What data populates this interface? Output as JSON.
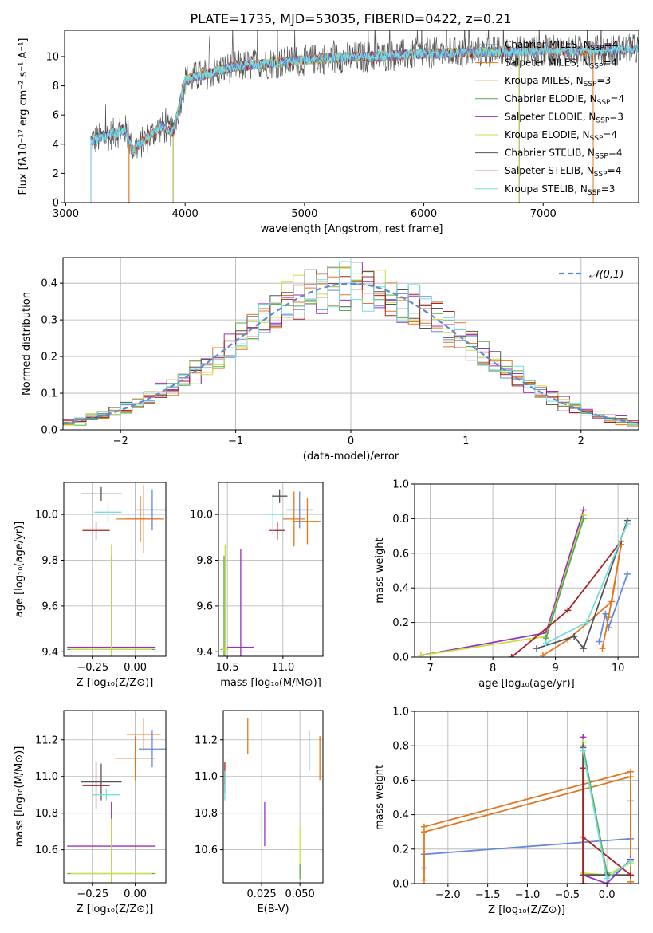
{
  "figure_title": "PLATE=1735, MJD=53035, FIBERID=0422, z=0.21",
  "colors": [
    "#6688dd",
    "#e07820",
    "#e07820",
    "#55aa55",
    "#9933bb",
    "#ccdd44",
    "#555555",
    "#aa2222",
    "#77dddd"
  ],
  "chart_data": [
    {
      "id": "spectrum",
      "type": "line",
      "title": "PLATE=1735, MJD=53035, FIBERID=0422, z=0.21",
      "xlabel": "wavelength [Angstrom, rest frame]",
      "ylabel": "Flux [fλ10⁻¹⁷ erg cm⁻² s⁻¹ A⁻¹]",
      "xlim": [
        2990,
        7800
      ],
      "ylim": [
        0,
        11.8
      ],
      "xticks": [
        3000,
        4000,
        5000,
        6000,
        7000
      ],
      "yticks": [
        0,
        2,
        4,
        6,
        8,
        10
      ],
      "legend_position": "upper-right",
      "data_start": 3210,
      "data_end": 7800,
      "continuum": [
        [
          3210,
          4.2
        ],
        [
          3500,
          5.0
        ],
        [
          3560,
          3.6
        ],
        [
          3800,
          5.2
        ],
        [
          3900,
          4.8
        ],
        [
          4000,
          8.4
        ],
        [
          4400,
          9.3
        ],
        [
          4800,
          9.6
        ],
        [
          5200,
          9.9
        ],
        [
          5600,
          10.0
        ],
        [
          6000,
          10.2
        ],
        [
          6500,
          10.3
        ],
        [
          7000,
          10.4
        ],
        [
          7400,
          10.4
        ],
        [
          7800,
          10.5
        ]
      ],
      "series": [
        {
          "name": "Chabrier MILES, N_SSP=4",
          "start": 3210
        },
        {
          "name": "Salpeter MILES, N_SSP=4",
          "start": 3530,
          "stop": 7420
        },
        {
          "name": "Kroupa MILES, N_SSP=3",
          "start": 3530,
          "stop": 7420
        },
        {
          "name": "Chabrier ELODIE, N_SSP=4",
          "start": 3900,
          "stop": 6800
        },
        {
          "name": "Salpeter ELODIE, N_SSP=3",
          "start": 3900,
          "stop": 6800
        },
        {
          "name": "Kroupa ELODIE, N_SSP=4",
          "start": 3900,
          "stop": 6800
        },
        {
          "name": "Chabrier STELIB, N_SSP=4",
          "start": 3210
        },
        {
          "name": "Salpeter STELIB, N_SSP=4",
          "start": 3210
        },
        {
          "name": "Kroupa STELIB, N_SSP=3",
          "start": 3210
        }
      ]
    },
    {
      "id": "residuals",
      "type": "line",
      "xlabel": "(data-model)/error",
      "ylabel": "Normed distribution",
      "xlim": [
        -2.5,
        2.5
      ],
      "ylim": [
        0,
        0.47
      ],
      "xticks": [
        -2,
        -1,
        0,
        1,
        2
      ],
      "xticklabels": [
        "−2",
        "−1",
        "0",
        "1",
        "2"
      ],
      "yticks": [
        0.0,
        0.1,
        0.2,
        0.3,
        0.4
      ],
      "yticklabels": [
        "0.0",
        "0.1",
        "0.2",
        "0.3",
        "0.4"
      ],
      "grid": true,
      "legend_position": "upper-right",
      "reference_curve": {
        "name": "𝒩(0,1)",
        "mu": 0,
        "sigma": 1
      }
    },
    {
      "id": "age-vs-z",
      "type": "scatter",
      "xlabel": "Z [log₁₀(Z/Z⊙)]",
      "ylabel": "age  [log₁₀(age/yr)]",
      "xlim": [
        -0.42,
        0.18
      ],
      "ylim": [
        9.38,
        10.14
      ],
      "xticks": [
        -0.25,
        0.0
      ],
      "xticklabels": [
        "−0.25",
        "0.00"
      ],
      "yticks": [
        9.4,
        9.6,
        9.8,
        10.0
      ],
      "yticklabels": [
        "9.4",
        "9.6",
        "9.8",
        "10.0"
      ],
      "grid": true,
      "points": [
        {
          "x": 0.1,
          "y": 10.02,
          "xerr": 0.09,
          "yerr": 0.09,
          "color": 0
        },
        {
          "x": 0.03,
          "y": 9.98,
          "xerr": 0.14,
          "yerr": 0.1,
          "color": 1
        },
        {
          "x": 0.05,
          "y": 9.98,
          "xerr": 0.1,
          "yerr": 0.15,
          "color": 2
        },
        {
          "x": -0.14,
          "y": 9.41,
          "xerr": 0.26,
          "yerr": 0.41,
          "color": 3
        },
        {
          "x": -0.14,
          "y": 9.42,
          "xerr": 0.26,
          "yerr": 0.4,
          "color": 4
        },
        {
          "x": -0.14,
          "y": 9.41,
          "xerr": 0.24,
          "yerr": 0.46,
          "color": 5
        },
        {
          "x": -0.2,
          "y": 10.09,
          "xerr": 0.12,
          "yerr": 0.03,
          "color": 6
        },
        {
          "x": -0.23,
          "y": 9.93,
          "xerr": 0.08,
          "yerr": 0.04,
          "color": 7
        },
        {
          "x": -0.16,
          "y": 10.01,
          "xerr": 0.08,
          "yerr": 0.04,
          "color": 8
        }
      ]
    },
    {
      "id": "age-vs-mass",
      "type": "scatter",
      "xlabel": "mass [log₁₀(M/M⊙)]",
      "ylabel": "",
      "xlim": [
        10.42,
        11.36
      ],
      "ylim": [
        9.38,
        10.14
      ],
      "xticks": [
        10.5,
        11.0
      ],
      "xticklabels": [
        "10.5",
        "11.0"
      ],
      "yticks": [
        9.4,
        9.6,
        9.8,
        10.0
      ],
      "yticklabels": [
        "9.4",
        "9.6",
        "9.8",
        "10.0"
      ],
      "grid": true,
      "points": [
        {
          "x": 11.15,
          "y": 10.02,
          "xerr": 0.12,
          "yerr": 0.08,
          "color": 0
        },
        {
          "x": 11.1,
          "y": 9.98,
          "xerr": 0.1,
          "yerr": 0.12,
          "color": 1
        },
        {
          "x": 11.22,
          "y": 9.97,
          "xerr": 0.12,
          "yerr": 0.1,
          "color": 2
        },
        {
          "x": 10.62,
          "y": 9.42,
          "xerr": 0.12,
          "yerr": 0.43,
          "color": 4
        },
        {
          "x": 10.47,
          "y": 9.41,
          "xerr": 0.03,
          "yerr": 0.41,
          "color": 3
        },
        {
          "x": 10.48,
          "y": 9.41,
          "xerr": 0.03,
          "yerr": 0.46,
          "color": 5
        },
        {
          "x": 10.97,
          "y": 10.08,
          "xerr": 0.07,
          "yerr": 0.03,
          "color": 6
        },
        {
          "x": 10.95,
          "y": 9.93,
          "xerr": 0.07,
          "yerr": 0.04,
          "color": 7
        },
        {
          "x": 10.91,
          "y": 10.0,
          "xerr": 0.08,
          "yerr": 0.09,
          "color": 8
        }
      ]
    },
    {
      "id": "mass-weight-vs-age",
      "type": "line",
      "xlabel": "age  [log₁₀(age/yr)]",
      "ylabel": "mass weight",
      "xlim": [
        6.75,
        10.33
      ],
      "ylim": [
        0,
        1.0
      ],
      "xticks": [
        7,
        8,
        9,
        10
      ],
      "xticklabels": [
        "7",
        "8",
        "9",
        "10"
      ],
      "yticks": [
        0.0,
        0.2,
        0.4,
        0.6,
        0.8,
        1.0
      ],
      "yticklabels": [
        "0.0",
        "0.2",
        "0.4",
        "0.6",
        "0.8",
        "1.0"
      ],
      "grid": true,
      "series": [
        {
          "color": 0,
          "points": [
            [
              9.7,
              0.09
            ],
            [
              9.8,
              0.25
            ],
            [
              9.85,
              0.17
            ],
            [
              10.15,
              0.48
            ]
          ]
        },
        {
          "color": 1,
          "points": [
            [
              8.8,
              0.01
            ],
            [
              9.2,
              0.1
            ],
            [
              9.9,
              0.32
            ],
            [
              10.05,
              0.65
            ]
          ]
        },
        {
          "color": 2,
          "points": [
            [
              9.75,
              0.05
            ],
            [
              9.85,
              0.23
            ],
            [
              10.05,
              0.65
            ]
          ]
        },
        {
          "color": 4,
          "points": [
            [
              6.85,
              0.01
            ],
            [
              8.85,
              0.14
            ],
            [
              9.45,
              0.85
            ]
          ]
        },
        {
          "color": 5,
          "points": [
            [
              6.85,
              0.01
            ],
            [
              8.85,
              0.12
            ],
            [
              9.45,
              0.82
            ]
          ]
        },
        {
          "color": 3,
          "points": [
            [
              8.85,
              0.11
            ],
            [
              9.45,
              0.8
            ]
          ]
        },
        {
          "color": 6,
          "points": [
            [
              8.7,
              0.05
            ],
            [
              9.3,
              0.12
            ],
            [
              9.45,
              0.05
            ],
            [
              10.15,
              0.79
            ]
          ]
        },
        {
          "color": 7,
          "points": [
            [
              8.3,
              0.0
            ],
            [
              9.2,
              0.27
            ],
            [
              10.05,
              0.67
            ]
          ]
        },
        {
          "color": 8,
          "points": [
            [
              8.85,
              0.08
            ],
            [
              9.5,
              0.2
            ],
            [
              10.15,
              0.77
            ]
          ]
        }
      ]
    },
    {
      "id": "mass-vs-z",
      "type": "scatter",
      "xlabel": "Z [log₁₀(Z/Z⊙)]",
      "ylabel": "mass [log₁₀(M/M⊙)]",
      "xlim": [
        -0.42,
        0.18
      ],
      "ylim": [
        10.42,
        11.36
      ],
      "xticks": [
        -0.25,
        0.0
      ],
      "xticklabels": [
        "−0.25",
        "0.00"
      ],
      "yticks": [
        10.6,
        10.8,
        11.0,
        11.2
      ],
      "yticklabels": [
        "10.6",
        "10.8",
        "11.0",
        "11.2"
      ],
      "grid": true,
      "points": [
        {
          "x": 0.1,
          "y": 11.15,
          "xerr": 0.08,
          "yerr": 0.1,
          "color": 0
        },
        {
          "x": 0.0,
          "y": 11.1,
          "xerr": 0.12,
          "yerr": 0.12,
          "color": 1
        },
        {
          "x": 0.05,
          "y": 11.23,
          "xerr": 0.1,
          "yerr": 0.09,
          "color": 2
        },
        {
          "x": -0.14,
          "y": 10.62,
          "xerr": 0.26,
          "yerr": 0.24,
          "color": 4
        },
        {
          "x": -0.14,
          "y": 10.47,
          "xerr": 0.26,
          "yerr": 0.03,
          "color": 3
        },
        {
          "x": -0.14,
          "y": 10.47,
          "xerr": 0.24,
          "yerr": 0.3,
          "color": 5
        },
        {
          "x": -0.2,
          "y": 10.97,
          "xerr": 0.12,
          "yerr": 0.1,
          "color": 6
        },
        {
          "x": -0.23,
          "y": 10.95,
          "xerr": 0.08,
          "yerr": 0.13,
          "color": 7
        },
        {
          "x": -0.17,
          "y": 10.9,
          "xerr": 0.08,
          "yerr": 0.03,
          "color": 8
        }
      ]
    },
    {
      "id": "mass-vs-ebv",
      "type": "scatter",
      "xlabel": "E(B-V)",
      "ylabel": "",
      "xlim": [
        0.0,
        0.065
      ],
      "ylim": [
        10.42,
        11.36
      ],
      "xticks": [
        0.025,
        0.05
      ],
      "xticklabels": [
        "0.025",
        "0.050"
      ],
      "yticks": [
        10.6,
        10.8,
        11.0,
        11.2
      ],
      "yticklabels": [
        "10.6",
        "10.8",
        "11.0",
        "11.2"
      ],
      "grid": true,
      "points": [
        {
          "x": 0.056,
          "y": 11.14,
          "xerr": 0,
          "yerr": 0.11,
          "color": 0
        },
        {
          "x": 0.063,
          "y": 11.1,
          "xerr": 0,
          "yerr": 0.12,
          "color": 1
        },
        {
          "x": 0.016,
          "y": 11.22,
          "xerr": 0,
          "yerr": 0.1,
          "color": 2
        },
        {
          "x": 0.027,
          "y": 10.74,
          "xerr": 0,
          "yerr": 0.12,
          "color": 4
        },
        {
          "x": 0.05,
          "y": 10.6,
          "xerr": 0,
          "yerr": 0.13,
          "color": 5
        },
        {
          "x": 0.05,
          "y": 10.48,
          "xerr": 0,
          "yerr": 0.04,
          "color": 3
        },
        {
          "x": 0.001,
          "y": 10.97,
          "xerr": 0,
          "yerr": 0.06,
          "color": 6
        },
        {
          "x": 0.001,
          "y": 11.02,
          "xerr": 0,
          "yerr": 0.06,
          "color": 7
        },
        {
          "x": 0.001,
          "y": 10.95,
          "xerr": 0,
          "yerr": 0.08,
          "color": 8
        }
      ]
    },
    {
      "id": "mass-weight-vs-z",
      "type": "line",
      "xlabel": "Z [log₁₀(Z/Z⊙)]",
      "ylabel": "mass weight",
      "xlim": [
        -2.42,
        0.4
      ],
      "ylim": [
        0,
        1.0
      ],
      "xticks": [
        -2.0,
        -1.5,
        -1.0,
        -0.5,
        0.0
      ],
      "xticklabels": [
        "−2.0",
        "−1.5",
        "−1.0",
        "−0.5",
        "0.0"
      ],
      "yticks": [
        0.0,
        0.2,
        0.4,
        0.6,
        0.8,
        1.0
      ],
      "yticklabels": [
        "0.0",
        "0.2",
        "0.4",
        "0.6",
        "0.8",
        "1.0"
      ],
      "grid": true,
      "series": [
        {
          "color": 0,
          "points": [
            [
              -2.3,
              0.09
            ],
            [
              -2.3,
              0.17
            ],
            [
              0.3,
              0.26
            ],
            [
              0.3,
              0.48
            ]
          ]
        },
        {
          "color": 1,
          "points": [
            [
              -2.3,
              0.33
            ],
            [
              0.3,
              0.65
            ],
            [
              0.3,
              0.01
            ]
          ]
        },
        {
          "color": 2,
          "points": [
            [
              -2.3,
              0.02
            ],
            [
              -2.3,
              0.3
            ],
            [
              0.3,
              0.62
            ],
            [
              0.3,
              0.05
            ]
          ]
        },
        {
          "color": 4,
          "points": [
            [
              -0.3,
              0.85
            ],
            [
              -0.3,
              0.05
            ],
            [
              0.0,
              0.0
            ],
            [
              0.3,
              0.14
            ]
          ]
        },
        {
          "color": 5,
          "points": [
            [
              -0.3,
              0.82
            ],
            [
              -0.3,
              0.06
            ],
            [
              0.0,
              0.05
            ],
            [
              0.3,
              0.12
            ]
          ]
        },
        {
          "color": 3,
          "points": [
            [
              -0.3,
              0.8
            ],
            [
              0.0,
              0.06
            ]
          ]
        },
        {
          "color": 6,
          "points": [
            [
              -0.3,
              0.79
            ],
            [
              -0.3,
              0.05
            ],
            [
              0.0,
              0.05
            ],
            [
              0.3,
              0.05
            ]
          ]
        },
        {
          "color": 7,
          "points": [
            [
              -0.3,
              0.67
            ],
            [
              -0.3,
              0.0
            ],
            [
              -0.3,
              0.27
            ],
            [
              0.3,
              0.05
            ]
          ]
        },
        {
          "color": 8,
          "points": [
            [
              -0.3,
              0.77
            ],
            [
              0.0,
              0.03
            ],
            [
              0.3,
              0.13
            ]
          ]
        }
      ]
    }
  ]
}
